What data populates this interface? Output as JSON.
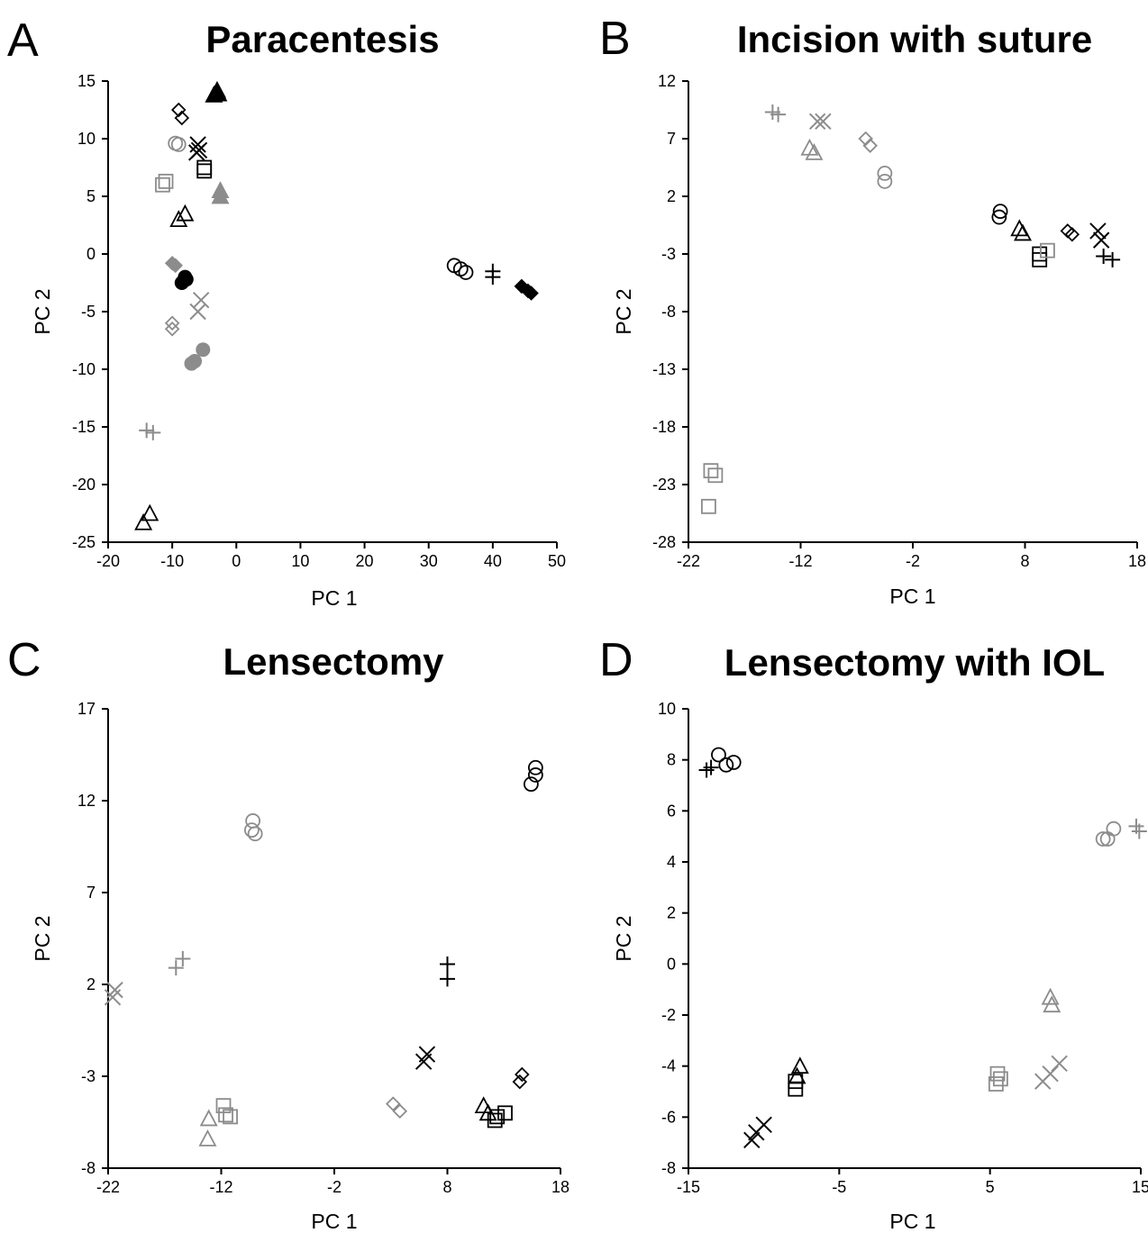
{
  "colors": {
    "black": "#000000",
    "gray": "#8c8c8c"
  },
  "chart_data": [
    {
      "type": "scatter",
      "panel_letter": "A",
      "title": "Paracentesis",
      "xlabel": "PC 1",
      "ylabel": "PC 2",
      "xlim": [
        -20,
        50
      ],
      "ylim": [
        -25,
        15
      ],
      "xticks": [
        -20,
        -10,
        0,
        10,
        20,
        30,
        40,
        50
      ],
      "yticks": [
        15,
        10,
        5,
        0,
        -5,
        -10,
        -15,
        -20,
        -25
      ],
      "xtick_labels": [
        "-20",
        "-10",
        "0",
        "10",
        "20",
        "30",
        "40",
        "50"
      ],
      "ytick_labels": [
        "15",
        "10",
        "5",
        "0",
        "-5",
        "-10",
        "-15",
        "-20",
        "-25"
      ],
      "series": [
        {
          "marker": "diamond",
          "color": "black",
          "points": [
            [
              -9,
              12.5
            ],
            [
              -8.5,
              11.8
            ]
          ]
        },
        {
          "marker": "triangle-filled",
          "color": "black",
          "points": [
            [
              -3.5,
              13.8
            ],
            [
              -3,
              14.2
            ],
            [
              -2.8,
              13.9
            ]
          ]
        },
        {
          "marker": "circle",
          "color": "gray",
          "points": [
            [
              -9.5,
              9.6
            ],
            [
              -9,
              9.5
            ]
          ]
        },
        {
          "marker": "x",
          "color": "black",
          "points": [
            [
              -6,
              9.5
            ],
            [
              -5.8,
              9
            ],
            [
              -6.2,
              8.8
            ]
          ]
        },
        {
          "marker": "square",
          "color": "black",
          "points": [
            [
              -5,
              7.5
            ],
            [
              -5,
              7.2
            ]
          ]
        },
        {
          "marker": "square",
          "color": "gray",
          "points": [
            [
              -11.5,
              6
            ],
            [
              -11,
              6.3
            ]
          ]
        },
        {
          "marker": "triangle-filled",
          "color": "gray",
          "points": [
            [
              -2.5,
              5.5
            ],
            [
              -2.5,
              5
            ]
          ]
        },
        {
          "marker": "triangle",
          "color": "black",
          "points": [
            [
              -8,
              3.5
            ],
            [
              -9,
              3
            ]
          ]
        },
        {
          "marker": "diamond-filled",
          "color": "gray",
          "points": [
            [
              -10,
              -0.8
            ],
            [
              -9.5,
              -1
            ]
          ]
        },
        {
          "marker": "circle-filled",
          "color": "black",
          "points": [
            [
              -8,
              -2
            ],
            [
              -8.5,
              -2.5
            ],
            [
              -7.8,
              -2.2
            ]
          ]
        },
        {
          "marker": "x",
          "color": "gray",
          "points": [
            [
              -5.5,
              -4
            ],
            [
              -6,
              -5
            ]
          ]
        },
        {
          "marker": "diamond",
          "color": "gray",
          "points": [
            [
              -10,
              -6
            ],
            [
              -10,
              -6.5
            ]
          ]
        },
        {
          "marker": "circle-filled",
          "color": "gray",
          "points": [
            [
              -5.2,
              -8.3
            ],
            [
              -6.5,
              -9.3
            ],
            [
              -7,
              -9.5
            ]
          ]
        },
        {
          "marker": "plus",
          "color": "gray",
          "points": [
            [
              -14,
              -15.3
            ],
            [
              -13,
              -15.5
            ]
          ]
        },
        {
          "marker": "triangle",
          "color": "black",
          "points": [
            [
              -13.5,
              -22.5
            ],
            [
              -14.5,
              -23.3
            ]
          ]
        },
        {
          "marker": "circle",
          "color": "black",
          "points": [
            [
              34,
              -1
            ],
            [
              35,
              -1.3
            ],
            [
              35.8,
              -1.6
            ]
          ]
        },
        {
          "marker": "plus",
          "color": "black",
          "points": [
            [
              40,
              -1.5
            ],
            [
              40,
              -2
            ]
          ]
        },
        {
          "marker": "diamond-filled",
          "color": "black",
          "points": [
            [
              44.5,
              -2.8
            ],
            [
              45.5,
              -3.2
            ],
            [
              46,
              -3.4
            ]
          ]
        }
      ]
    },
    {
      "type": "scatter",
      "panel_letter": "B",
      "title": "Incision with suture",
      "xlabel": "PC 1",
      "ylabel": "PC 2",
      "xlim": [
        -22,
        18
      ],
      "ylim": [
        -28,
        12
      ],
      "xticks": [
        -22,
        -12,
        -2,
        8,
        18
      ],
      "yticks": [
        12,
        7,
        2,
        -3,
        -8,
        -13,
        -18,
        -23,
        -28
      ],
      "xtick_labels": [
        "-22",
        "-12",
        "-2",
        "8",
        "18"
      ],
      "ytick_labels": [
        "12",
        "7",
        "2",
        "-3",
        "-8",
        "-13",
        "-18",
        "-23",
        "-28"
      ],
      "series": [
        {
          "marker": "plus",
          "color": "gray",
          "points": [
            [
              -14.5,
              9.3
            ],
            [
              -14,
              9.1
            ]
          ]
        },
        {
          "marker": "x",
          "color": "gray",
          "points": [
            [
              -10.5,
              8.5
            ],
            [
              -10,
              8.5
            ]
          ]
        },
        {
          "marker": "triangle",
          "color": "gray",
          "points": [
            [
              -11.2,
              6.2
            ],
            [
              -10.8,
              5.8
            ]
          ]
        },
        {
          "marker": "diamond",
          "color": "gray",
          "points": [
            [
              -6.2,
              7
            ],
            [
              -5.8,
              6.4
            ]
          ]
        },
        {
          "marker": "circle",
          "color": "gray",
          "points": [
            [
              -4.5,
              4
            ],
            [
              -4.5,
              3.3
            ]
          ]
        },
        {
          "marker": "circle",
          "color": "black",
          "points": [
            [
              5.8,
              0.7
            ],
            [
              5.7,
              0.2
            ]
          ]
        },
        {
          "marker": "triangle",
          "color": "black",
          "points": [
            [
              7.5,
              -0.8
            ],
            [
              7.8,
              -1.2
            ]
          ]
        },
        {
          "marker": "square",
          "color": "black",
          "points": [
            [
              9.3,
              -3
            ],
            [
              9.3,
              -3.5
            ]
          ]
        },
        {
          "marker": "square",
          "color": "gray",
          "points": [
            [
              10,
              -2.7
            ]
          ]
        },
        {
          "marker": "diamond",
          "color": "black",
          "points": [
            [
              11.8,
              -1
            ],
            [
              12.2,
              -1.3
            ]
          ]
        },
        {
          "marker": "x",
          "color": "black",
          "points": [
            [
              14.5,
              -1
            ],
            [
              14.8,
              -1.8
            ]
          ]
        },
        {
          "marker": "plus",
          "color": "black",
          "points": [
            [
              15,
              -3.2
            ],
            [
              15.8,
              -3.5
            ]
          ]
        },
        {
          "marker": "square",
          "color": "gray",
          "points": [
            [
              -20,
              -21.8
            ],
            [
              -19.6,
              -22.2
            ],
            [
              -20.2,
              -24.9
            ]
          ]
        }
      ]
    },
    {
      "type": "scatter",
      "panel_letter": "C",
      "title": "Lensectomy",
      "xlabel": "PC 1",
      "ylabel": "PC 2",
      "xlim": [
        -22,
        18
      ],
      "ylim": [
        -8,
        17
      ],
      "xticks": [
        -22,
        -12,
        -2,
        8,
        18
      ],
      "yticks": [
        17,
        12,
        7,
        2,
        -3,
        -8
      ],
      "xtick_labels": [
        "-22",
        "-12",
        "-2",
        "8",
        "18"
      ],
      "ytick_labels": [
        "17",
        "12",
        "7",
        "2",
        "-3",
        "-8"
      ],
      "series": [
        {
          "marker": "circle",
          "color": "black",
          "points": [
            [
              15.8,
              13.8
            ],
            [
              15.8,
              13.4
            ],
            [
              15.4,
              12.9
            ]
          ]
        },
        {
          "marker": "circle",
          "color": "gray",
          "points": [
            [
              -9.2,
              10.9
            ],
            [
              -9.3,
              10.4
            ],
            [
              -9.0,
              10.2
            ]
          ]
        },
        {
          "marker": "plus",
          "color": "gray",
          "points": [
            [
              -16,
              2.9
            ],
            [
              -15.4,
              3.4
            ]
          ]
        },
        {
          "marker": "x",
          "color": "gray",
          "points": [
            [
              -21.4,
              1.7
            ],
            [
              -21.6,
              1.3
            ]
          ]
        },
        {
          "marker": "plus",
          "color": "black",
          "points": [
            [
              8,
              3.1
            ],
            [
              8,
              2.3
            ]
          ]
        },
        {
          "marker": "x",
          "color": "black",
          "points": [
            [
              6.2,
              -1.8
            ],
            [
              5.9,
              -2.2
            ]
          ]
        },
        {
          "marker": "diamond",
          "color": "black",
          "points": [
            [
              14.6,
              -2.9
            ],
            [
              14.4,
              -3.3
            ]
          ]
        },
        {
          "marker": "diamond",
          "color": "gray",
          "points": [
            [
              3.2,
              -4.5
            ],
            [
              3.8,
              -4.9
            ]
          ]
        },
        {
          "marker": "triangle",
          "color": "black",
          "points": [
            [
              11.2,
              -4.6
            ],
            [
              11.6,
              -5.0
            ]
          ]
        },
        {
          "marker": "square",
          "color": "black",
          "points": [
            [
              12.4,
              -5.2
            ],
            [
              13.1,
              -5.0
            ],
            [
              12.2,
              -5.4
            ]
          ]
        },
        {
          "marker": "square",
          "color": "gray",
          "points": [
            [
              -11.8,
              -4.6
            ],
            [
              -11.6,
              -5.1
            ],
            [
              -11.2,
              -5.2
            ]
          ]
        },
        {
          "marker": "triangle",
          "color": "gray",
          "points": [
            [
              -13.1,
              -5.3
            ],
            [
              -13.2,
              -6.4
            ]
          ]
        }
      ]
    },
    {
      "type": "scatter",
      "panel_letter": "D",
      "title": "Lensectomy with IOL",
      "xlabel": "PC 1",
      "ylabel": "PC 2",
      "xlim": [
        -15,
        15
      ],
      "ylim": [
        -8,
        10
      ],
      "xticks": [
        -15,
        -5,
        5,
        15
      ],
      "yticks": [
        10,
        8,
        6,
        4,
        2,
        0,
        -2,
        -4,
        -6,
        -8
      ],
      "xtick_labels": [
        "-15",
        "-5",
        "5",
        "15"
      ],
      "ytick_labels": [
        "10",
        "8",
        "6",
        "4",
        "2",
        "0",
        "-2",
        "-4",
        "-6",
        "-8"
      ],
      "series": [
        {
          "marker": "circle",
          "color": "black",
          "points": [
            [
              -13,
              8.2
            ],
            [
              -12.5,
              7.8
            ],
            [
              -12.0,
              7.9
            ]
          ]
        },
        {
          "marker": "plus",
          "color": "black",
          "points": [
            [
              -13.8,
              7.6
            ],
            [
              -13.5,
              7.7
            ]
          ]
        },
        {
          "marker": "circle",
          "color": "gray",
          "points": [
            [
              12.5,
              4.9
            ],
            [
              12.8,
              4.9
            ],
            [
              13.2,
              5.3
            ]
          ]
        },
        {
          "marker": "plus",
          "color": "gray",
          "points": [
            [
              14.7,
              5.4
            ],
            [
              14.9,
              5.2
            ]
          ]
        },
        {
          "marker": "triangle",
          "color": "gray",
          "points": [
            [
              9.0,
              -1.3
            ],
            [
              9.1,
              -1.6
            ]
          ]
        },
        {
          "marker": "triangle",
          "color": "black",
          "points": [
            [
              -7.6,
              -4.0
            ],
            [
              -7.8,
              -4.4
            ]
          ]
        },
        {
          "marker": "square",
          "color": "black",
          "points": [
            [
              -7.9,
              -4.6
            ],
            [
              -7.9,
              -4.9
            ]
          ]
        },
        {
          "marker": "square",
          "color": "gray",
          "points": [
            [
              5.5,
              -4.3
            ],
            [
              5.7,
              -4.5
            ],
            [
              5.4,
              -4.7
            ]
          ]
        },
        {
          "marker": "x",
          "color": "gray",
          "points": [
            [
              9.6,
              -3.9
            ],
            [
              9.0,
              -4.3
            ],
            [
              8.5,
              -4.6
            ]
          ]
        },
        {
          "marker": "x",
          "color": "black",
          "points": [
            [
              -10.8,
              -6.9
            ],
            [
              -10.5,
              -6.6
            ],
            [
              -10.0,
              -6.3
            ]
          ]
        }
      ]
    }
  ]
}
